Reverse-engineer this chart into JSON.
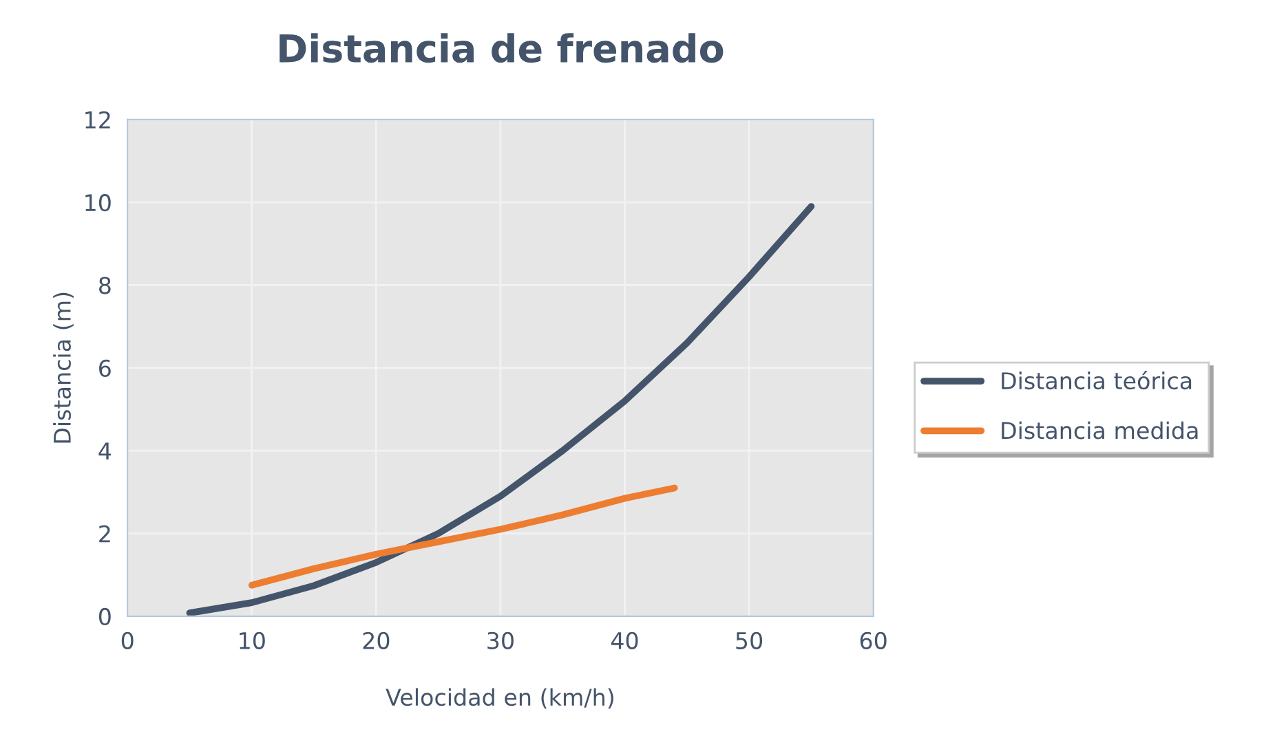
{
  "chart_data": {
    "type": "line",
    "title": "Distancia de frenado",
    "xlabel": "Velocidad en (km/h)",
    "ylabel": "Distancia (m)",
    "series": [
      {
        "name": "Distancia teórica",
        "color": "#44546a",
        "x": [
          5,
          10,
          15,
          20,
          25,
          30,
          35,
          40,
          45,
          50,
          55
        ],
        "values": [
          0.08,
          0.33,
          0.74,
          1.3,
          2.0,
          2.9,
          4.0,
          5.2,
          6.6,
          8.2,
          9.9
        ]
      },
      {
        "name": "Distancia medida",
        "color": "#ed7d31",
        "x": [
          10,
          15,
          20,
          25,
          30,
          35,
          40,
          44
        ],
        "values": [
          0.75,
          1.15,
          1.5,
          1.8,
          2.1,
          2.45,
          2.85,
          3.1
        ]
      }
    ],
    "xlim": [
      0,
      60
    ],
    "xticks": [
      0,
      10,
      20,
      30,
      40,
      50,
      60
    ],
    "ylim": [
      0,
      12
    ],
    "yticks": [
      0,
      2,
      4,
      6,
      8,
      10,
      12
    ],
    "grid": true,
    "legend": "right",
    "marker": "none",
    "line_style": "solid"
  }
}
